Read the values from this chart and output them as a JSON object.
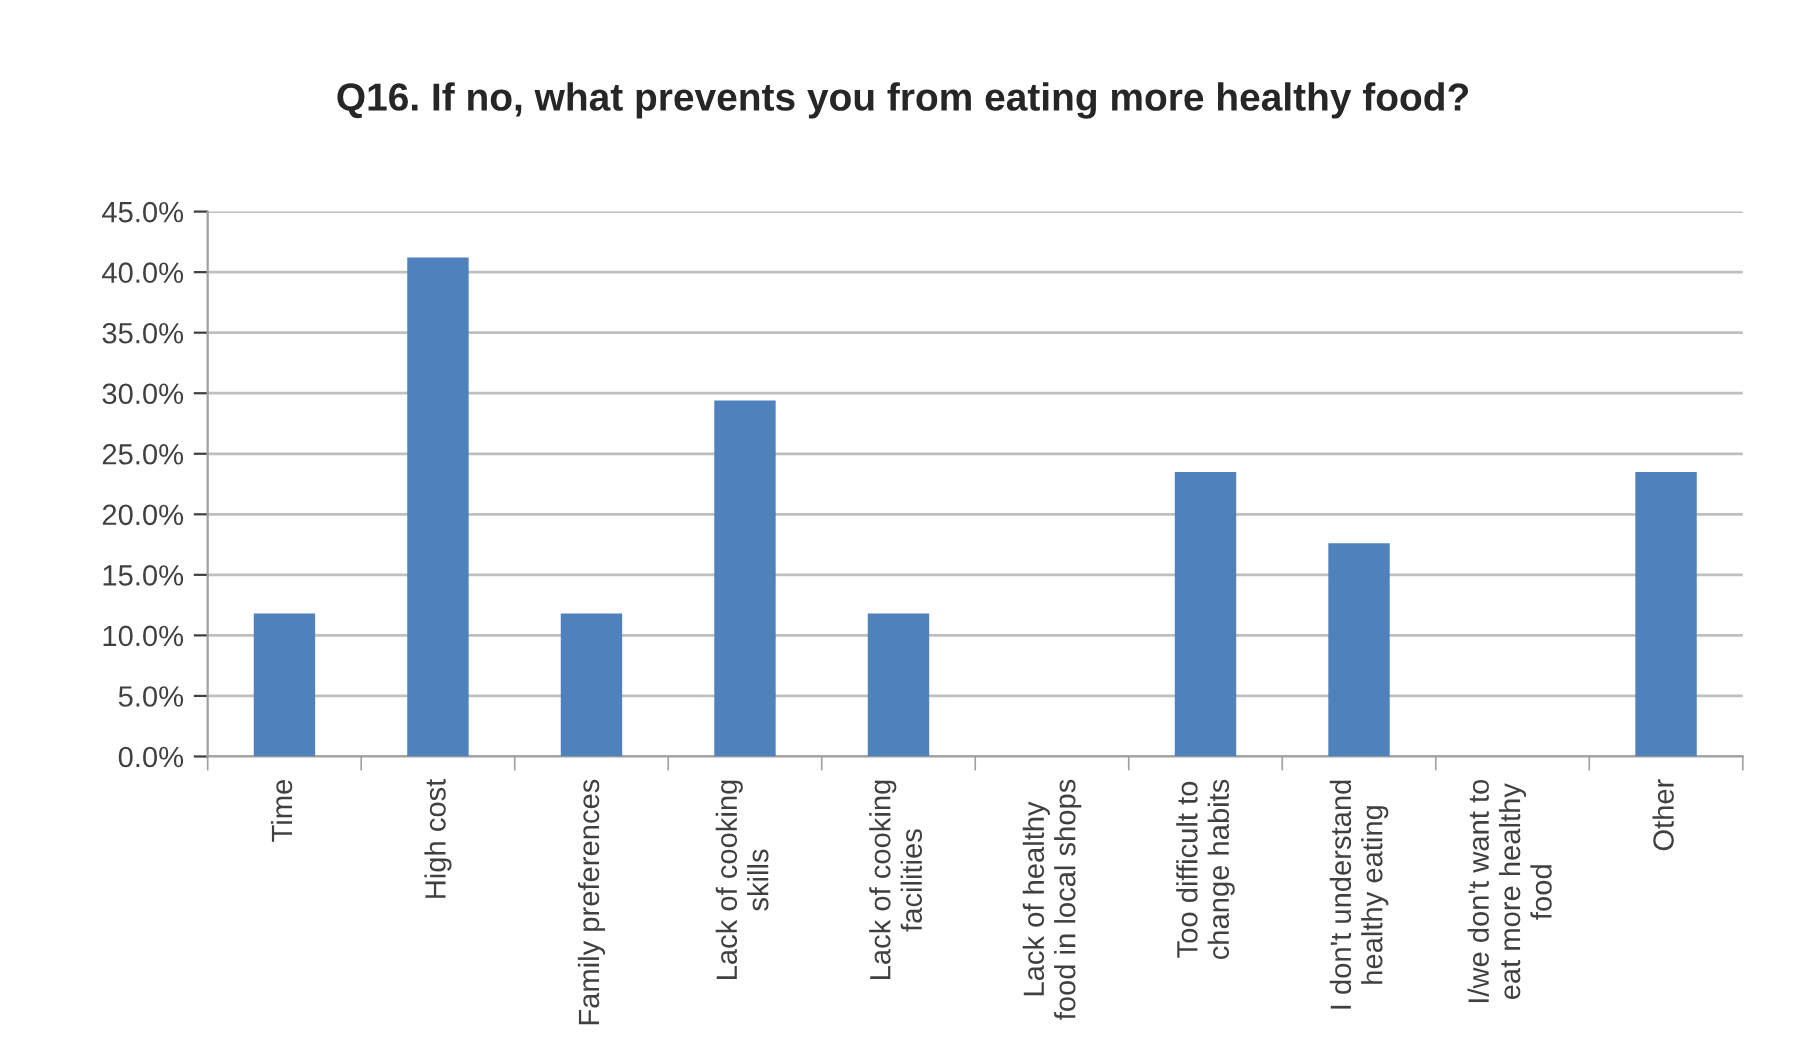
{
  "chart_data": {
    "type": "bar",
    "title": "Q16. If no, what prevents you from eating more healthy food?",
    "categories": [
      "Time",
      "High cost",
      "Family preferences",
      "Lack of cooking\nskills",
      "Lack of cooking\nfacilities",
      "Lack of healthy\nfood in local shops",
      "Too difficult to\nchange habits",
      "I don't understand\nhealthy eating",
      "I/we don't want to\neat more healthy\nfood",
      "Other"
    ],
    "values": [
      11.8,
      41.2,
      11.8,
      29.4,
      11.8,
      0,
      23.5,
      17.6,
      0,
      23.5
    ],
    "color": "#4f81bd",
    "ylim": [
      0,
      45
    ],
    "yticks": [
      {
        "value": 0,
        "label": "0.0%"
      },
      {
        "value": 5,
        "label": "5.0%"
      },
      {
        "value": 10,
        "label": "10.0%"
      },
      {
        "value": 15,
        "label": "15.0%"
      },
      {
        "value": 20,
        "label": "20.0%"
      },
      {
        "value": 25,
        "label": "25.0%"
      },
      {
        "value": 30,
        "label": "30.0%"
      },
      {
        "value": 35,
        "label": "35.0%"
      },
      {
        "value": 40,
        "label": "40.0%"
      },
      {
        "value": 45,
        "label": "45.0%"
      }
    ],
    "grid": "y",
    "legend": false
  }
}
